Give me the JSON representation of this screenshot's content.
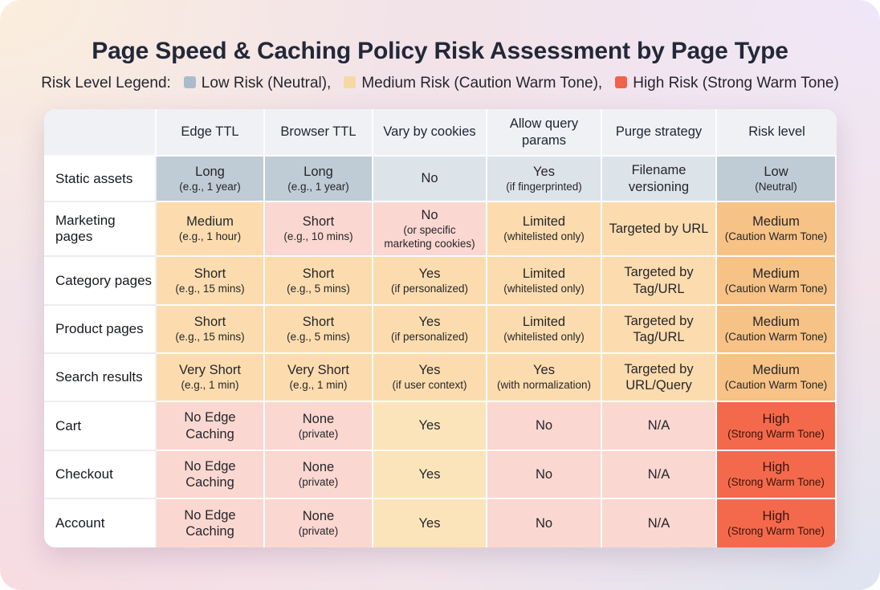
{
  "title": "Page Speed & Caching Policy Risk Assessment by Page Type",
  "legend": {
    "label": "Risk Level Legend:",
    "items": [
      {
        "name": "low-risk",
        "label": "Low Risk (Neutral),",
        "color": "#a9bcce"
      },
      {
        "name": "medium-risk",
        "label": "Medium Risk (Caution Warm Tone),",
        "color": "#f6d8a2"
      },
      {
        "name": "high-risk",
        "label": "High Risk (Strong Warm Tone)",
        "color": "#f2614a"
      }
    ]
  },
  "colors": {
    "neutral_strong": "#bfcbd5",
    "neutral_soft": "#dce3e9",
    "warm_soft": "#fcdcae",
    "warm_medium": "#f7c285",
    "pink_soft": "#fad7d0",
    "amber_soft": "#fce4ba",
    "high_strong": "#f4694c"
  },
  "table": {
    "columns": [
      {
        "key": "page-type",
        "label": ""
      },
      {
        "key": "edge-ttl",
        "label": "Edge TTL"
      },
      {
        "key": "browser-ttl",
        "label": "Browser TTL"
      },
      {
        "key": "vary-by-cookies",
        "label": "Vary by cookies"
      },
      {
        "key": "allow-query-params",
        "label": "Allow query params"
      },
      {
        "key": "purge-strategy",
        "label": "Purge strategy"
      },
      {
        "key": "risk-level",
        "label": "Risk level"
      }
    ],
    "rows": [
      {
        "label": "Static assets",
        "cells": [
          {
            "main": "Long",
            "sub": "(e.g., 1 year)",
            "tone": "neutral_strong"
          },
          {
            "main": "Long",
            "sub": "(e.g., 1 year)",
            "tone": "neutral_strong"
          },
          {
            "main": "No",
            "tone": "neutral_soft"
          },
          {
            "main": "Yes",
            "sub": "(if fingerprinted)",
            "tone": "neutral_soft"
          },
          {
            "main": "Filename versioning",
            "tone": "neutral_soft"
          },
          {
            "main": "Low",
            "sub": "(Neutral)",
            "tone": "neutral_strong"
          }
        ]
      },
      {
        "label": "Marketing pages",
        "cells": [
          {
            "main": "Medium",
            "sub": "(e.g., 1 hour)",
            "tone": "warm_soft"
          },
          {
            "main": "Short",
            "sub": "(e.g., 10 mins)",
            "tone": "pink_soft"
          },
          {
            "main": "No",
            "sub": "(or specific marketing cookies)",
            "tone": "pink_soft"
          },
          {
            "main": "Limited",
            "sub": "(whitelisted only)",
            "tone": "warm_soft"
          },
          {
            "main": "Targeted by URL",
            "tone": "warm_soft"
          },
          {
            "main": "Medium",
            "sub": "(Caution Warm Tone)",
            "tone": "warm_medium"
          }
        ]
      },
      {
        "label": "Category pages",
        "cells": [
          {
            "main": "Short",
            "sub": "(e.g., 15 mins)",
            "tone": "warm_soft"
          },
          {
            "main": "Short",
            "sub": "(e.g., 5 mins)",
            "tone": "warm_soft"
          },
          {
            "main": "Yes",
            "sub": "(if personalized)",
            "tone": "warm_soft"
          },
          {
            "main": "Limited",
            "sub": "(whitelisted only)",
            "tone": "warm_soft"
          },
          {
            "main": "Targeted by Tag/URL",
            "tone": "warm_soft"
          },
          {
            "main": "Medium",
            "sub": "(Caution Warm Tone)",
            "tone": "warm_medium"
          }
        ]
      },
      {
        "label": "Product pages",
        "cells": [
          {
            "main": "Short",
            "sub": "(e.g., 15 mins)",
            "tone": "warm_soft"
          },
          {
            "main": "Short",
            "sub": "(e.g., 5 mins)",
            "tone": "warm_soft"
          },
          {
            "main": "Yes",
            "sub": "(if personalized)",
            "tone": "warm_soft"
          },
          {
            "main": "Limited",
            "sub": "(whitelisted only)",
            "tone": "warm_soft"
          },
          {
            "main": "Targeted by Tag/URL",
            "tone": "warm_soft"
          },
          {
            "main": "Medium",
            "sub": "(Caution Warm Tone)",
            "tone": "warm_medium"
          }
        ]
      },
      {
        "label": "Search results",
        "cells": [
          {
            "main": "Very Short",
            "sub": "(e.g., 1 min)",
            "tone": "warm_soft"
          },
          {
            "main": "Very Short",
            "sub": "(e.g., 1 min)",
            "tone": "warm_soft"
          },
          {
            "main": "Yes",
            "sub": "(if user context)",
            "tone": "warm_soft"
          },
          {
            "main": "Yes",
            "sub": "(with normalization)",
            "tone": "warm_soft"
          },
          {
            "main": "Targeted by URL/Query",
            "tone": "warm_soft"
          },
          {
            "main": "Medium",
            "sub": "(Caution Warm Tone)",
            "tone": "warm_medium"
          }
        ]
      },
      {
        "label": "Cart",
        "cells": [
          {
            "main": "No Edge Caching",
            "tone": "pink_soft"
          },
          {
            "main": "None",
            "sub": "(private)",
            "tone": "pink_soft"
          },
          {
            "main": "Yes",
            "tone": "amber_soft"
          },
          {
            "main": "No",
            "tone": "pink_soft"
          },
          {
            "main": "N/A",
            "tone": "pink_soft"
          },
          {
            "main": "High",
            "sub": "(Strong Warm Tone)",
            "tone": "high_strong"
          }
        ]
      },
      {
        "label": "Checkout",
        "cells": [
          {
            "main": "No Edge Caching",
            "tone": "pink_soft"
          },
          {
            "main": "None",
            "sub": "(private)",
            "tone": "pink_soft"
          },
          {
            "main": "Yes",
            "tone": "amber_soft"
          },
          {
            "main": "No",
            "tone": "pink_soft"
          },
          {
            "main": "N/A",
            "tone": "pink_soft"
          },
          {
            "main": "High",
            "sub": "(Strong Warm Tone)",
            "tone": "high_strong"
          }
        ]
      },
      {
        "label": "Account",
        "cells": [
          {
            "main": "No Edge Caching",
            "tone": "pink_soft"
          },
          {
            "main": "None",
            "sub": "(private)",
            "tone": "pink_soft"
          },
          {
            "main": "Yes",
            "tone": "amber_soft"
          },
          {
            "main": "No",
            "tone": "pink_soft"
          },
          {
            "main": "N/A",
            "tone": "pink_soft"
          },
          {
            "main": "High",
            "sub": "(Strong Warm Tone)",
            "tone": "high_strong"
          }
        ]
      }
    ]
  }
}
